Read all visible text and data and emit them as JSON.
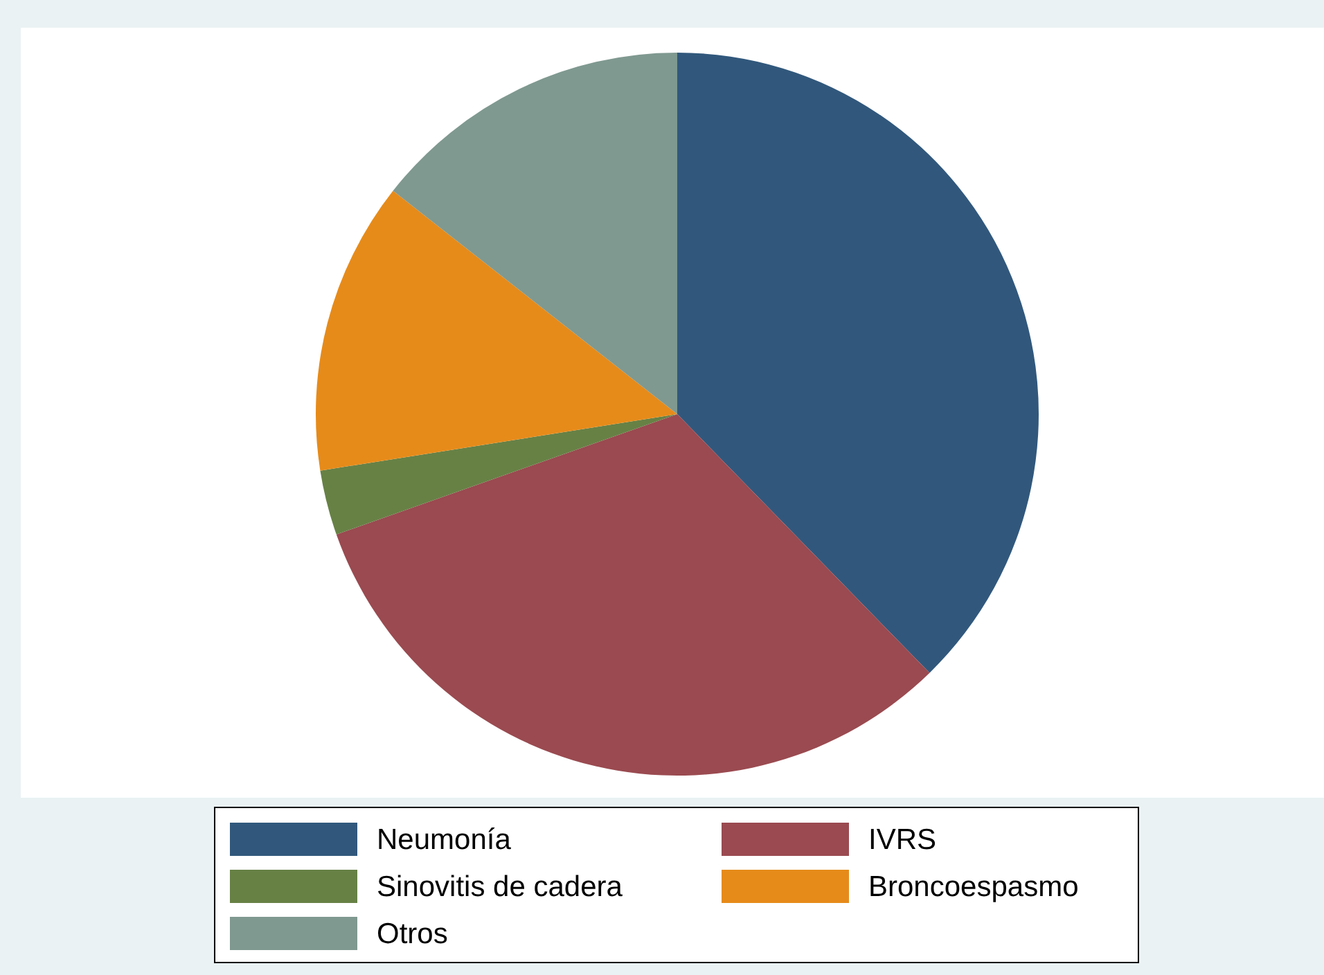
{
  "chart_data": {
    "type": "pie",
    "categories": [
      "Neumonía",
      "IVRS",
      "Sinovitis de cadera",
      "Broncoespasmo",
      "Otros"
    ],
    "values": [
      37.7,
      31.9,
      2.9,
      13.1,
      14.4
    ],
    "colors": [
      "#31587c",
      "#9a4a50",
      "#678145",
      "#e68b1a",
      "#7f9990"
    ],
    "legend": "bottom"
  }
}
